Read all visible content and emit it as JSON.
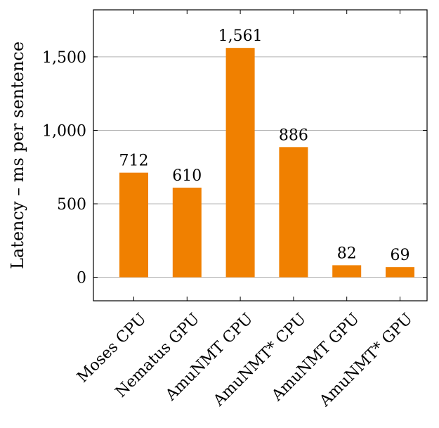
{
  "chart_data": {
    "type": "bar",
    "title": "",
    "xlabel": "",
    "ylabel": "Latency – ms per sentence",
    "categories": [
      "Moses CPU",
      "Nematus GPU",
      "AmuNMT CPU",
      "AmuNMT* CPU",
      "AmuNMT GPU",
      "AmuNMT* GPU"
    ],
    "values": [
      712,
      610,
      1561,
      886,
      82,
      69
    ],
    "value_labels": [
      "712",
      "610",
      "1,561",
      "886",
      "82",
      "69"
    ],
    "ylim": [
      -160,
      1820
    ],
    "yticks": [
      0,
      500,
      1000,
      1500
    ],
    "ytick_labels": [
      "0",
      "500",
      "1,000",
      "1,500"
    ],
    "grid": "horizontal",
    "bar_color": "#f08000"
  }
}
